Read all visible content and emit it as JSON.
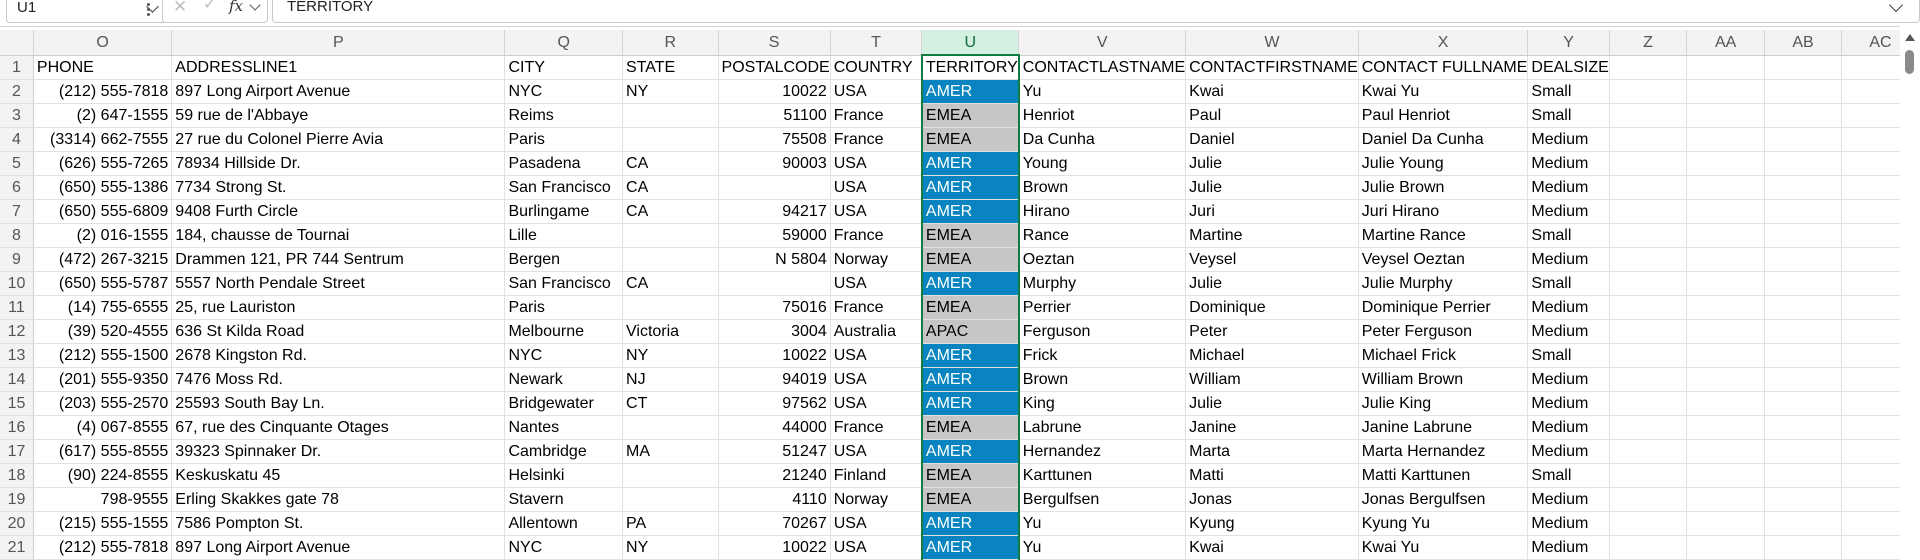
{
  "formula_bar": {
    "name_box": "U1",
    "formula": "TERRITORY",
    "fx": "fx",
    "cancel_glyph": "✕",
    "enter_glyph": "✓"
  },
  "columns": [
    "O",
    "P",
    "Q",
    "R",
    "S",
    "T",
    "U",
    "V",
    "W",
    "X",
    "Y",
    "Z",
    "AA",
    "AB",
    "AC"
  ],
  "selected_column": "U",
  "rows": [
    {
      "n": "1",
      "phone": "PHONE",
      "address": "ADDRESSLINE1",
      "city": "CITY",
      "state": "STATE",
      "postal": "POSTALCODE",
      "country": "COUNTRY",
      "territory": "TERRITORY",
      "last": "CONTACTLASTNAME",
      "first": "CONTACTFIRSTNAME",
      "full": "CONTACT FULLNAME",
      "deal": "DEALSIZE"
    },
    {
      "n": "2",
      "phone": "(212) 555-7818",
      "address": "897 Long Airport Avenue",
      "city": "NYC",
      "state": "NY",
      "postal": "10022",
      "country": "USA",
      "territory": "AMER",
      "last": "Yu",
      "first": "Kwai",
      "full": "Kwai Yu",
      "deal": "Small"
    },
    {
      "n": "3",
      "phone": "(2) 647-1555",
      "address": "59 rue de l'Abbaye",
      "city": "Reims",
      "state": "",
      "postal": "51100",
      "country": "France",
      "territory": "EMEA",
      "last": "Henriot",
      "first": "Paul",
      "full": "Paul Henriot",
      "deal": "Small"
    },
    {
      "n": "4",
      "phone": "(3314) 662-7555",
      "address": "27 rue du Colonel Pierre Avia",
      "city": "Paris",
      "state": "",
      "postal": "75508",
      "country": "France",
      "territory": "EMEA",
      "last": "Da Cunha",
      "first": "Daniel",
      "full": "Daniel Da Cunha",
      "deal": "Medium"
    },
    {
      "n": "5",
      "phone": "(626) 555-7265",
      "address": "78934 Hillside Dr.",
      "city": "Pasadena",
      "state": "CA",
      "postal": "90003",
      "country": "USA",
      "territory": "AMER",
      "last": "Young",
      "first": "Julie",
      "full": "Julie Young",
      "deal": "Medium"
    },
    {
      "n": "6",
      "phone": "(650) 555-1386",
      "address": "7734 Strong St.",
      "city": "San Francisco",
      "state": "CA",
      "postal": "",
      "country": "USA",
      "territory": "AMER",
      "last": "Brown",
      "first": "Julie",
      "full": "Julie Brown",
      "deal": "Medium"
    },
    {
      "n": "7",
      "phone": "(650) 555-6809",
      "address": "9408 Furth Circle",
      "city": "Burlingame",
      "state": "CA",
      "postal": "94217",
      "country": "USA",
      "territory": "AMER",
      "last": "Hirano",
      "first": "Juri",
      "full": "Juri Hirano",
      "deal": "Medium"
    },
    {
      "n": "8",
      "phone": "(2) 016-1555",
      "address": "184, chausse de Tournai",
      "city": "Lille",
      "state": "",
      "postal": "59000",
      "country": "France",
      "territory": "EMEA",
      "last": "Rance",
      "first": "Martine",
      "full": "Martine Rance",
      "deal": "Small"
    },
    {
      "n": "9",
      "phone": "(472) 267-3215",
      "address": "Drammen 121, PR 744 Sentrum",
      "city": "Bergen",
      "state": "",
      "postal": "N 5804",
      "country": "Norway",
      "territory": "EMEA",
      "last": "Oeztan",
      "first": "Veysel",
      "full": "Veysel Oeztan",
      "deal": "Medium"
    },
    {
      "n": "10",
      "phone": "(650) 555-5787",
      "address": "5557 North Pendale Street",
      "city": "San Francisco",
      "state": "CA",
      "postal": "",
      "country": "USA",
      "territory": "AMER",
      "last": "Murphy",
      "first": "Julie",
      "full": "Julie Murphy",
      "deal": "Small"
    },
    {
      "n": "11",
      "phone": "(14) 755-6555",
      "address": "25, rue Lauriston",
      "city": "Paris",
      "state": "",
      "postal": "75016",
      "country": "France",
      "territory": "EMEA",
      "last": "Perrier",
      "first": "Dominique",
      "full": "Dominique Perrier",
      "deal": "Medium"
    },
    {
      "n": "12",
      "phone": "(39) 520-4555",
      "address": "636 St Kilda Road",
      "city": "Melbourne",
      "state": "Victoria",
      "postal": "3004",
      "country": "Australia",
      "territory": "APAC",
      "last": "Ferguson",
      "first": "Peter",
      "full": "Peter Ferguson",
      "deal": "Medium"
    },
    {
      "n": "13",
      "phone": "(212) 555-1500",
      "address": "2678 Kingston Rd.",
      "city": "NYC",
      "state": "NY",
      "postal": "10022",
      "country": "USA",
      "territory": "AMER",
      "last": "Frick",
      "first": "Michael",
      "full": "Michael Frick",
      "deal": "Small"
    },
    {
      "n": "14",
      "phone": "(201) 555-9350",
      "address": "7476 Moss Rd.",
      "city": "Newark",
      "state": "NJ",
      "postal": "94019",
      "country": "USA",
      "territory": "AMER",
      "last": "Brown",
      "first": "William",
      "full": "William Brown",
      "deal": "Medium"
    },
    {
      "n": "15",
      "phone": "(203) 555-2570",
      "address": "25593 South Bay Ln.",
      "city": "Bridgewater",
      "state": "CT",
      "postal": "97562",
      "country": "USA",
      "territory": "AMER",
      "last": "King",
      "first": "Julie",
      "full": "Julie King",
      "deal": "Medium"
    },
    {
      "n": "16",
      "phone": "(4) 067-8555",
      "address": "67, rue des Cinquante Otages",
      "city": "Nantes",
      "state": "",
      "postal": "44000",
      "country": "France",
      "territory": "EMEA",
      "last": "Labrune",
      "first": "Janine",
      "full": "Janine Labrune",
      "deal": "Medium"
    },
    {
      "n": "17",
      "phone": "(617) 555-8555",
      "address": "39323 Spinnaker Dr.",
      "city": "Cambridge",
      "state": "MA",
      "postal": "51247",
      "country": "USA",
      "territory": "AMER",
      "last": "Hernandez",
      "first": "Marta",
      "full": "Marta Hernandez",
      "deal": "Medium"
    },
    {
      "n": "18",
      "phone": "(90) 224-8555",
      "address": "Keskuskatu 45",
      "city": "Helsinki",
      "state": "",
      "postal": "21240",
      "country": "Finland",
      "territory": "EMEA",
      "last": "Karttunen",
      "first": "Matti",
      "full": "Matti Karttunen",
      "deal": "Small"
    },
    {
      "n": "19",
      "phone": "798-9555",
      "address": "Erling Skakkes gate 78",
      "city": "Stavern",
      "state": "",
      "postal": "4110",
      "country": "Norway",
      "territory": "EMEA",
      "last": "Bergulfsen",
      "first": "Jonas",
      "full": "Jonas Bergulfsen",
      "deal": "Medium"
    },
    {
      "n": "20",
      "phone": "(215) 555-1555",
      "address": "7586 Pompton St.",
      "city": "Allentown",
      "state": "PA",
      "postal": "70267",
      "country": "USA",
      "territory": "AMER",
      "last": "Yu",
      "first": "Kyung",
      "full": "Kyung Yu",
      "deal": "Medium"
    },
    {
      "n": "21",
      "phone": "(212) 555-7818",
      "address": "897 Long Airport Avenue",
      "city": "NYC",
      "state": "NY",
      "postal": "10022",
      "country": "USA",
      "territory": "AMER",
      "last": "Yu",
      "first": "Kwai",
      "full": "Kwai Yu",
      "deal": "Medium"
    }
  ],
  "colors": {
    "amer_fill": "#0a84c1",
    "other_fill": "#c6c6c6",
    "selection": "#107c41"
  }
}
